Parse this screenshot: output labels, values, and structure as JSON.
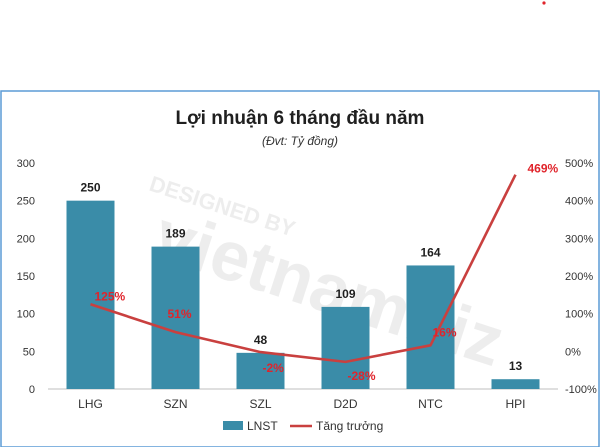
{
  "chart_data": {
    "type": "bar",
    "title": "Lợi nhuận 6 tháng đầu năm",
    "subtitle": "(Đvt: Tỷ đồng)",
    "categories": [
      "LHG",
      "SZN",
      "SZL",
      "D2D",
      "NTC",
      "HPI"
    ],
    "series": [
      {
        "name": "LNST",
        "type": "bar",
        "axis": "left",
        "values": [
          250,
          189,
          48,
          109,
          164,
          13
        ]
      },
      {
        "name": "Tăng trưởng",
        "type": "line",
        "axis": "right",
        "values": [
          125,
          51,
          -2,
          -28,
          16,
          469
        ],
        "labels": [
          "125%",
          "51%",
          "-2%",
          "-28%",
          "16%",
          "469%"
        ]
      }
    ],
    "ylim": [
      0,
      300
    ],
    "y_ticks": [
      0,
      50,
      100,
      150,
      200,
      250,
      300
    ],
    "y2lim": [
      -100,
      500
    ],
    "y2_ticks": [
      "-100%",
      "0%",
      "100%",
      "200%",
      "300%",
      "400%",
      "500%"
    ],
    "grid": false,
    "legend_position": "bottom",
    "colors": {
      "bar": "#3a8ca8",
      "line": "#c9403f",
      "growth_label": "#e0242b",
      "frame": "#5b9bd5"
    }
  }
}
